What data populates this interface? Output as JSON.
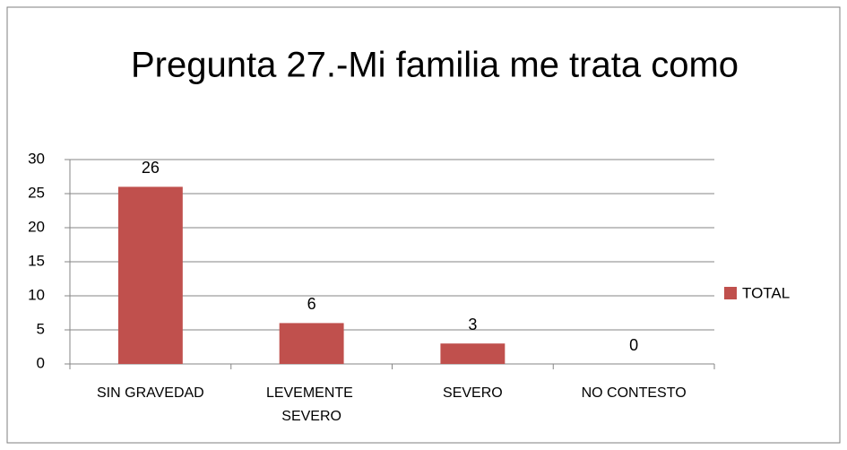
{
  "chart_data": {
    "type": "bar",
    "title": "Pregunta 27.-Mi familia me trata como",
    "categories": [
      "SIN GRAVEDAD",
      "LEVEMENTE SEVERO",
      "SEVERO",
      "NO CONTESTO"
    ],
    "series": [
      {
        "name": "TOTAL",
        "color": "#c0504d",
        "values": [
          26,
          6,
          3,
          0
        ]
      }
    ],
    "ylim": [
      0,
      30
    ],
    "yticks": [
      0,
      5,
      10,
      15,
      20,
      25,
      30
    ],
    "grid": true,
    "legend": "right"
  }
}
